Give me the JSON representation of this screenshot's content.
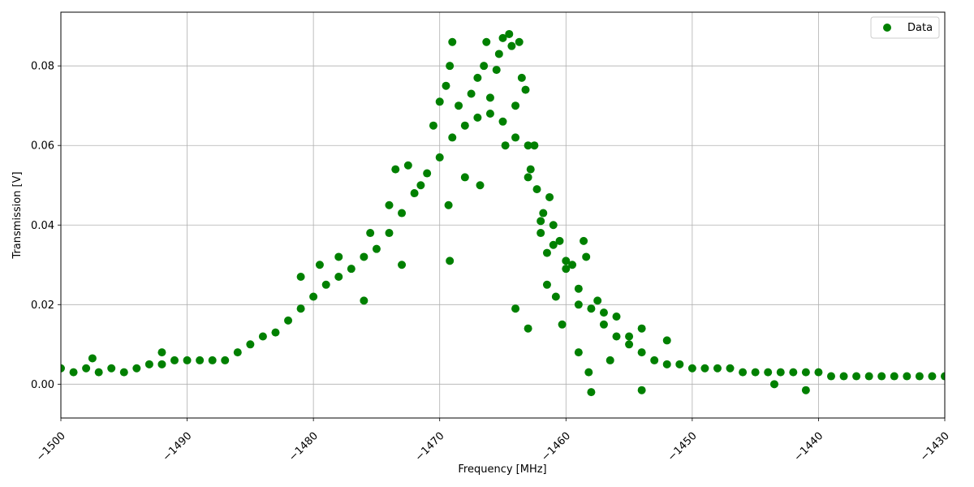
{
  "chart_data": {
    "type": "scatter",
    "xlabel": "Frequency [MHz]",
    "ylabel": "Transmission [V]",
    "xlim": [
      -1500,
      -1430
    ],
    "ylim": [
      -0.0085,
      0.0935
    ],
    "x_ticks": [
      -1500,
      -1490,
      -1480,
      -1470,
      -1460,
      -1450,
      -1440,
      -1430
    ],
    "x_tick_labels": [
      "−1500",
      "−1490",
      "−1480",
      "−1470",
      "−1460",
      "−1450",
      "−1440",
      "−1430"
    ],
    "y_ticks": [
      0.0,
      0.02,
      0.04,
      0.06,
      0.08
    ],
    "y_tick_labels": [
      "0.00",
      "0.02",
      "0.04",
      "0.06",
      "0.08"
    ],
    "grid": true,
    "legend_position": "top-right",
    "series": [
      {
        "name": "Data",
        "color": "#008000",
        "marker": "circle",
        "points": [
          [
            -1500,
            0.004
          ],
          [
            -1499,
            0.003
          ],
          [
            -1498,
            0.004
          ],
          [
            -1497,
            0.003
          ],
          [
            -1496,
            0.004
          ],
          [
            -1495,
            0.003
          ],
          [
            -1494,
            0.004
          ],
          [
            -1493,
            0.005
          ],
          [
            -1492,
            0.005
          ],
          [
            -1491,
            0.006
          ],
          [
            -1490,
            0.006
          ],
          [
            -1489,
            0.006
          ],
          [
            -1488,
            0.006
          ],
          [
            -1487,
            0.006
          ],
          [
            -1486,
            0.008
          ],
          [
            -1485,
            0.01
          ],
          [
            -1484,
            0.012
          ],
          [
            -1483,
            0.013
          ],
          [
            -1482,
            0.016
          ],
          [
            -1481,
            0.019
          ],
          [
            -1480,
            0.022
          ],
          [
            -1479,
            0.025
          ],
          [
            -1478,
            0.027
          ],
          [
            -1477,
            0.029
          ],
          [
            -1476,
            0.032
          ],
          [
            -1475,
            0.034
          ],
          [
            -1474,
            0.038
          ],
          [
            -1473,
            0.043
          ],
          [
            -1472,
            0.048
          ],
          [
            -1471,
            0.053
          ],
          [
            -1470,
            0.057
          ],
          [
            -1469,
            0.062
          ],
          [
            -1468,
            0.065
          ],
          [
            -1467,
            0.067
          ],
          [
            -1466,
            0.068
          ],
          [
            -1465,
            0.066
          ],
          [
            -1464,
            0.062
          ],
          [
            -1463,
            0.052
          ],
          [
            -1462,
            0.041
          ],
          [
            -1461,
            0.035
          ],
          [
            -1460,
            0.029
          ],
          [
            -1459,
            0.024
          ],
          [
            -1458,
            0.019
          ],
          [
            -1457,
            0.015
          ],
          [
            -1456,
            0.012
          ],
          [
            -1455,
            0.01
          ],
          [
            -1454,
            0.008
          ],
          [
            -1453,
            0.006
          ],
          [
            -1452,
            0.005
          ],
          [
            -1451,
            0.005
          ],
          [
            -1450,
            0.004
          ],
          [
            -1449,
            0.004
          ],
          [
            -1448,
            0.004
          ],
          [
            -1447,
            0.004
          ],
          [
            -1446,
            0.003
          ],
          [
            -1445,
            0.003
          ],
          [
            -1444,
            0.003
          ],
          [
            -1443,
            0.003
          ],
          [
            -1442,
            0.003
          ],
          [
            -1441,
            0.003
          ],
          [
            -1440,
            0.003
          ],
          [
            -1439,
            0.002
          ],
          [
            -1438,
            0.002
          ],
          [
            -1437,
            0.002
          ],
          [
            -1436,
            0.002
          ],
          [
            -1435,
            0.002
          ],
          [
            -1434,
            0.002
          ],
          [
            -1433,
            0.002
          ],
          [
            -1432,
            0.002
          ],
          [
            -1431,
            0.002
          ],
          [
            -1430,
            0.002
          ],
          [
            -1492,
            0.008
          ],
          [
            -1497.5,
            0.0065
          ],
          [
            -1481,
            0.027
          ],
          [
            -1479.5,
            0.03
          ],
          [
            -1478,
            0.032
          ],
          [
            -1476,
            0.021
          ],
          [
            -1475.5,
            0.038
          ],
          [
            -1474,
            0.045
          ],
          [
            -1473.5,
            0.054
          ],
          [
            -1473,
            0.03
          ],
          [
            -1472.5,
            0.055
          ],
          [
            -1471.5,
            0.05
          ],
          [
            -1470.5,
            0.065
          ],
          [
            -1470,
            0.071
          ],
          [
            -1469.5,
            0.075
          ],
          [
            -1469.2,
            0.08
          ],
          [
            -1469,
            0.086
          ],
          [
            -1469.3,
            0.045
          ],
          [
            -1469.2,
            0.031
          ],
          [
            -1468.5,
            0.07
          ],
          [
            -1468,
            0.052
          ],
          [
            -1467.5,
            0.073
          ],
          [
            -1467,
            0.077
          ],
          [
            -1466.8,
            0.05
          ],
          [
            -1466.5,
            0.08
          ],
          [
            -1466.3,
            0.086
          ],
          [
            -1466,
            0.072
          ],
          [
            -1465.5,
            0.079
          ],
          [
            -1465.3,
            0.083
          ],
          [
            -1465,
            0.087
          ],
          [
            -1464.8,
            0.06
          ],
          [
            -1464.5,
            0.088
          ],
          [
            -1464.3,
            0.085
          ],
          [
            -1464,
            0.07
          ],
          [
            -1463.7,
            0.086
          ],
          [
            -1463.5,
            0.077
          ],
          [
            -1463.2,
            0.074
          ],
          [
            -1463,
            0.06
          ],
          [
            -1462.8,
            0.054
          ],
          [
            -1462.5,
            0.06
          ],
          [
            -1462.3,
            0.049
          ],
          [
            -1462,
            0.038
          ],
          [
            -1461.8,
            0.043
          ],
          [
            -1461.5,
            0.033
          ],
          [
            -1461.3,
            0.047
          ],
          [
            -1461,
            0.04
          ],
          [
            -1460.8,
            0.022
          ],
          [
            -1460.5,
            0.036
          ],
          [
            -1460.3,
            0.015
          ],
          [
            -1460,
            0.031
          ],
          [
            -1459.5,
            0.03
          ],
          [
            -1459,
            0.02
          ],
          [
            -1458.6,
            0.036
          ],
          [
            -1458.4,
            0.032
          ],
          [
            -1458.2,
            0.003
          ],
          [
            -1458,
            -0.002
          ],
          [
            -1457.5,
            0.021
          ],
          [
            -1457,
            0.018
          ],
          [
            -1456,
            0.017
          ],
          [
            -1455,
            0.012
          ],
          [
            -1454,
            0.014
          ],
          [
            -1454,
            -0.0015
          ],
          [
            -1452,
            0.011
          ],
          [
            -1441,
            -0.0015
          ],
          [
            -1443.5,
            0.0
          ],
          [
            -1464,
            0.019
          ],
          [
            -1463,
            0.014
          ],
          [
            -1461.5,
            0.025
          ],
          [
            -1459,
            0.008
          ],
          [
            -1456.5,
            0.006
          ]
        ]
      }
    ]
  }
}
